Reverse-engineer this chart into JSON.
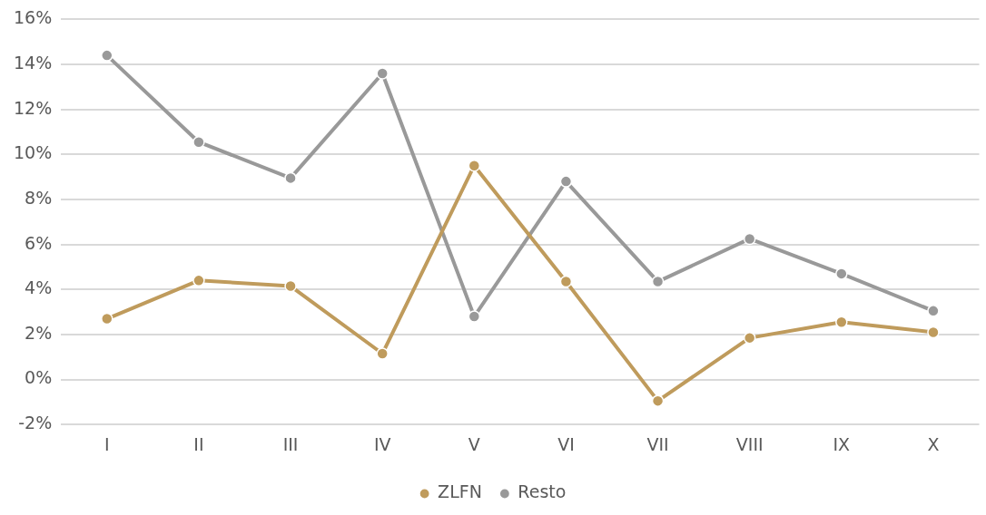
{
  "chart_data": {
    "type": "line",
    "categories": [
      "I",
      "II",
      "III",
      "IV",
      "V",
      "VI",
      "VII",
      "VIII",
      "IX",
      "X"
    ],
    "series": [
      {
        "name": "ZLFN",
        "color": "#bf9b5c",
        "values": [
          2.7,
          4.4,
          4.15,
          1.15,
          9.5,
          4.35,
          -0.95,
          1.85,
          2.55,
          2.1
        ]
      },
      {
        "name": "Resto",
        "color": "#999999",
        "values": [
          14.4,
          10.55,
          8.95,
          13.6,
          2.8,
          8.8,
          4.35,
          6.25,
          4.7,
          3.05
        ]
      }
    ],
    "ylim": [
      -2,
      16
    ],
    "yticks": [
      {
        "value": -2,
        "label": "-2%"
      },
      {
        "value": 0,
        "label": "0%"
      },
      {
        "value": 2,
        "label": "2%"
      },
      {
        "value": 4,
        "label": "4%"
      },
      {
        "value": 6,
        "label": "6%"
      },
      {
        "value": 8,
        "label": "8%"
      },
      {
        "value": 10,
        "label": "10%"
      },
      {
        "value": 12,
        "label": "12%"
      },
      {
        "value": 14,
        "label": "14%"
      },
      {
        "value": 16,
        "label": "16%"
      }
    ],
    "grid": "y",
    "legend": "bottom",
    "marker": "circle",
    "line_style": "solid"
  }
}
